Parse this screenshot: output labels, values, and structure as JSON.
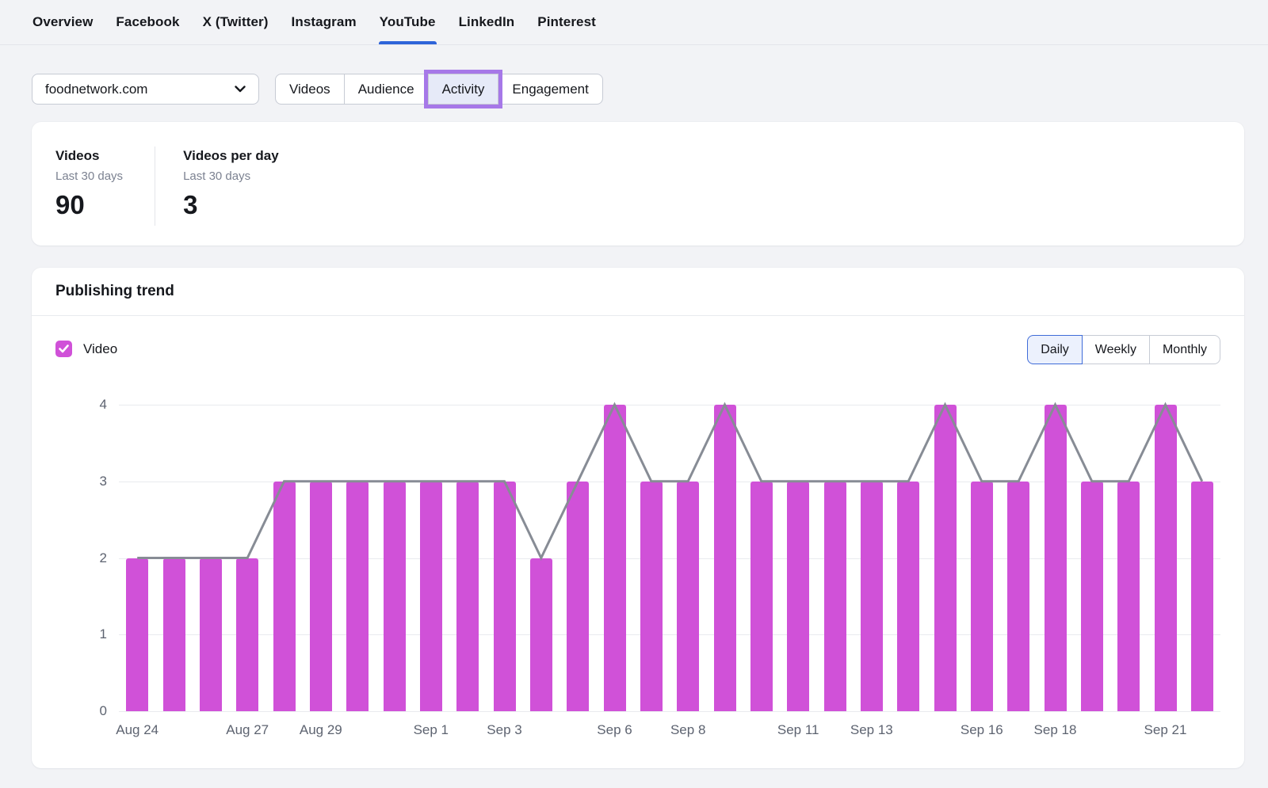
{
  "theme": {
    "page_bg": "#f2f3f6",
    "accent_blue": "#2e64d9",
    "magenta": "#d051d8",
    "line_gray": "#878c95",
    "highlight_purple": "#a678e8",
    "highlight_bg": "#e6eaf8",
    "selected_border": "#3f6cd8",
    "selected_bg": "#ecf1fd",
    "grid_gray": "#e9ebef",
    "axis_text": "#5d6370"
  },
  "nav": {
    "tabs": [
      {
        "label": "Overview",
        "active": false
      },
      {
        "label": "Facebook",
        "active": false
      },
      {
        "label": "X (Twitter)",
        "active": false
      },
      {
        "label": "Instagram",
        "active": false
      },
      {
        "label": "YouTube",
        "active": true
      },
      {
        "label": "LinkedIn",
        "active": false
      },
      {
        "label": "Pinterest",
        "active": false
      }
    ]
  },
  "filters": {
    "domain": {
      "value": "foodnetwork.com"
    },
    "views": [
      {
        "label": "Videos",
        "highlighted": false
      },
      {
        "label": "Audience",
        "highlighted": false
      },
      {
        "label": "Activity",
        "highlighted": true
      },
      {
        "label": "Engagement",
        "highlighted": false
      }
    ]
  },
  "stats": {
    "cards": [
      {
        "title": "Videos",
        "period": "Last 30 days",
        "value": "90"
      },
      {
        "title": "Videos per day",
        "period": "Last 30 days",
        "value": "3"
      }
    ]
  },
  "publishing_trend": {
    "title": "Publishing trend",
    "legend": {
      "label": "Video",
      "checked": true,
      "color": "#d051d8"
    },
    "granularity": {
      "options": [
        "Daily",
        "Weekly",
        "Monthly"
      ],
      "selected": "Daily"
    }
  },
  "chart_data": {
    "type": "bar",
    "title": "Publishing trend",
    "x": [
      "Aug 24",
      "Aug 25",
      "Aug 26",
      "Aug 27",
      "Aug 28",
      "Aug 29",
      "Aug 30",
      "Aug 31",
      "Sep 1",
      "Sep 2",
      "Sep 3",
      "Sep 4",
      "Sep 5",
      "Sep 6",
      "Sep 7",
      "Sep 8",
      "Sep 9",
      "Sep 10",
      "Sep 11",
      "Sep 12",
      "Sep 13",
      "Sep 14",
      "Sep 15",
      "Sep 16",
      "Sep 17",
      "Sep 18",
      "Sep 19",
      "Sep 20",
      "Sep 21",
      "Sep 22"
    ],
    "series": [
      {
        "name": "Video",
        "type": "bar",
        "color": "#d051d8",
        "values": [
          2,
          2,
          2,
          2,
          3,
          3,
          3,
          3,
          3,
          3,
          3,
          2,
          3,
          4,
          3,
          3,
          4,
          3,
          3,
          3,
          3,
          3,
          4,
          3,
          3,
          4,
          3,
          3,
          4,
          3
        ]
      },
      {
        "name": "Video trend",
        "type": "line",
        "color": "#878c95",
        "values": [
          2,
          2,
          2,
          2,
          3,
          3,
          3,
          3,
          3,
          3,
          3,
          2,
          3,
          4,
          3,
          3,
          4,
          3,
          3,
          3,
          3,
          3,
          4,
          3,
          3,
          4,
          3,
          3,
          4,
          3
        ]
      }
    ],
    "x_tick_labels": [
      "Aug 24",
      "Aug 27",
      "Aug 29",
      "Sep 1",
      "Sep 3",
      "Sep 6",
      "Sep 8",
      "Sep 11",
      "Sep 13",
      "Sep 16",
      "Sep 18",
      "Sep 21"
    ],
    "x_tick_indices": [
      0,
      3,
      5,
      8,
      10,
      13,
      15,
      18,
      20,
      23,
      25,
      28
    ],
    "ylim": [
      0,
      4
    ],
    "yticks": [
      0,
      1,
      2,
      3,
      4
    ],
    "grid": "horizontal",
    "legend_position": "top-left"
  }
}
